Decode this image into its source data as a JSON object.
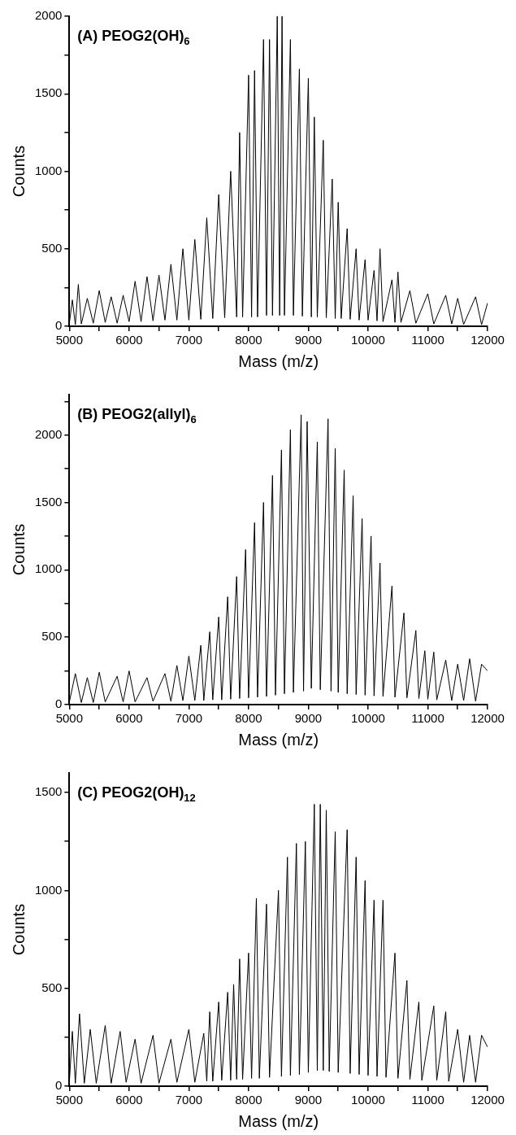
{
  "chart_data": [
    {
      "type": "line",
      "title": "(A) PEOG2(OH)$_{6}$",
      "xlabel": "Mass (m/z)",
      "ylabel": "Counts",
      "xlim": [
        5000,
        12000
      ],
      "ylim": [
        0,
        2000
      ],
      "xticks": [
        5000,
        {
          "value": 5500,
          "label": null
        },
        6000,
        {
          "value": 6500,
          "label": null
        },
        7000,
        {
          "value": 7500,
          "label": null
        },
        8000,
        {
          "value": 8500,
          "label": null
        },
        9000,
        {
          "value": 9500,
          "label": null
        },
        10000,
        {
          "value": 10500,
          "label": null
        },
        11000,
        {
          "value": 11500,
          "label": null
        },
        12000
      ],
      "yticks": [
        0,
        {
          "value": 250,
          "label": null
        },
        500,
        {
          "value": 750,
          "label": null
        },
        1000,
        {
          "value": 1250,
          "label": null
        },
        1500,
        {
          "value": 1750,
          "label": null
        },
        2000
      ],
      "series": [
        {
          "color": "#000000",
          "x": [
            5000,
            5050,
            5100,
            5150,
            5200,
            5300,
            5400,
            5500,
            5600,
            5700,
            5800,
            5900,
            6000,
            6100,
            6200,
            6300,
            6400,
            6500,
            6600,
            6700,
            6800,
            6900,
            7000,
            7100,
            7200,
            7300,
            7400,
            7500,
            7600,
            7700,
            7800,
            7850,
            7900,
            8000,
            8050,
            8100,
            8150,
            8250,
            8300,
            8350,
            8400,
            8480,
            8520,
            8560,
            8600,
            8700,
            8750,
            8850,
            8900,
            9000,
            9050,
            9100,
            9150,
            9250,
            9300,
            9400,
            9450,
            9500,
            9550,
            9650,
            9700,
            9800,
            9850,
            9950,
            10000,
            10100,
            10150,
            10200,
            10250,
            10400,
            10450,
            10500,
            10550,
            10700,
            10800,
            11000,
            11100,
            11300,
            11400,
            11500,
            11600,
            11800,
            11900,
            12000
          ],
          "values": [
            20,
            170,
            10,
            270,
            15,
            180,
            20,
            230,
            25,
            190,
            20,
            200,
            30,
            290,
            30,
            320,
            35,
            330,
            40,
            400,
            40,
            500,
            40,
            560,
            45,
            700,
            50,
            850,
            55,
            1000,
            60,
            1250,
            60,
            1620,
            60,
            1650,
            60,
            1850,
            70,
            1850,
            70,
            2000,
            70,
            2000,
            70,
            1850,
            70,
            1660,
            65,
            1600,
            60,
            1350,
            60,
            1200,
            55,
            950,
            50,
            800,
            50,
            630,
            45,
            500,
            40,
            430,
            40,
            360,
            35,
            500,
            30,
            300,
            25,
            350,
            25,
            230,
            20,
            210,
            15,
            200,
            15,
            180,
            12,
            190,
            10,
            150
          ]
        }
      ]
    },
    {
      "type": "line",
      "title": "(B) PEOG2(allyl)$_{6}$",
      "xlabel": "Mass (m/z)",
      "ylabel": "Counts",
      "xlim": [
        5000,
        12000
      ],
      "ylim": [
        0,
        2300
      ],
      "xticks": [
        5000,
        {
          "value": 5500,
          "label": null
        },
        6000,
        {
          "value": 6500,
          "label": null
        },
        7000,
        {
          "value": 7500,
          "label": null
        },
        8000,
        {
          "value": 8500,
          "label": null
        },
        9000,
        {
          "value": 9500,
          "label": null
        },
        10000,
        {
          "value": 10500,
          "label": null
        },
        11000,
        {
          "value": 11500,
          "label": null
        },
        12000
      ],
      "yticks": [
        0,
        {
          "value": 250,
          "label": null
        },
        500,
        {
          "value": 750,
          "label": null
        },
        1000,
        {
          "value": 1250,
          "label": null
        },
        1500,
        {
          "value": 1750,
          "label": null
        },
        2000,
        {
          "value": 2250,
          "label": null
        }
      ],
      "series": [
        {
          "color": "#000000",
          "x": [
            5000,
            5100,
            5200,
            5300,
            5400,
            5500,
            5600,
            5800,
            5900,
            6000,
            6100,
            6300,
            6400,
            6600,
            6700,
            6800,
            6900,
            7000,
            7100,
            7200,
            7250,
            7350,
            7400,
            7500,
            7550,
            7650,
            7700,
            7800,
            7850,
            7950,
            8000,
            8100,
            8150,
            8250,
            8300,
            8400,
            8450,
            8550,
            8600,
            8700,
            8750,
            8880,
            8920,
            8980,
            9050,
            9150,
            9200,
            9330,
            9380,
            9450,
            9500,
            9600,
            9650,
            9750,
            9800,
            9900,
            9950,
            10050,
            10100,
            10200,
            10250,
            10400,
            10450,
            10600,
            10650,
            10800,
            10850,
            10950,
            11000,
            11100,
            11150,
            11300,
            11400,
            11500,
            11600,
            11700,
            11800,
            11900,
            12000
          ],
          "values": [
            20,
            230,
            15,
            200,
            15,
            240,
            20,
            210,
            20,
            250,
            20,
            200,
            25,
            230,
            25,
            290,
            30,
            360,
            30,
            440,
            30,
            540,
            35,
            650,
            35,
            800,
            40,
            950,
            45,
            1150,
            50,
            1350,
            55,
            1500,
            60,
            1700,
            70,
            1890,
            80,
            2040,
            90,
            2150,
            100,
            2100,
            120,
            1950,
            110,
            2120,
            100,
            1900,
            90,
            1740,
            80,
            1550,
            75,
            1380,
            70,
            1250,
            65,
            1050,
            60,
            880,
            55,
            680,
            50,
            550,
            45,
            400,
            40,
            390,
            35,
            330,
            30,
            300,
            30,
            340,
            25,
            300,
            250
          ]
        }
      ]
    },
    {
      "type": "line",
      "title": "(C) PEOG2(OH)$_{12}$",
      "xlabel": "Mass (m/z)",
      "ylabel": "Counts",
      "xlim": [
        5000,
        12000
      ],
      "ylim": [
        0,
        1600
      ],
      "xticks": [
        5000,
        {
          "value": 5500,
          "label": null
        },
        6000,
        {
          "value": 6500,
          "label": null
        },
        7000,
        {
          "value": 7500,
          "label": null
        },
        8000,
        {
          "value": 8500,
          "label": null
        },
        9000,
        {
          "value": 9500,
          "label": null
        },
        10000,
        {
          "value": 10500,
          "label": null
        },
        11000,
        {
          "value": 11500,
          "label": null
        },
        12000
      ],
      "yticks": [
        0,
        {
          "value": 250,
          "label": null
        },
        500,
        {
          "value": 750,
          "label": null
        },
        1000,
        {
          "value": 1250,
          "label": null
        },
        1500
      ],
      "series": [
        {
          "color": "#000000",
          "x": [
            5000,
            5050,
            5100,
            5170,
            5250,
            5350,
            5450,
            5600,
            5700,
            5850,
            5950,
            6100,
            6200,
            6400,
            6500,
            6700,
            6800,
            7000,
            7100,
            7250,
            7300,
            7350,
            7400,
            7500,
            7550,
            7650,
            7700,
            7750,
            7800,
            7850,
            7900,
            8000,
            8050,
            8130,
            8180,
            8300,
            8350,
            8500,
            8550,
            8650,
            8700,
            8800,
            8850,
            8950,
            9000,
            9100,
            9150,
            9200,
            9250,
            9300,
            9350,
            9450,
            9500,
            9650,
            9700,
            9800,
            9850,
            9950,
            10000,
            10100,
            10150,
            10250,
            10300,
            10450,
            10500,
            10650,
            10700,
            10850,
            10900,
            11100,
            11150,
            11300,
            11350,
            11500,
            11600,
            11700,
            11800,
            11900,
            12000
          ],
          "values": [
            20,
            280,
            15,
            370,
            15,
            290,
            15,
            310,
            15,
            280,
            20,
            240,
            15,
            260,
            15,
            240,
            20,
            290,
            20,
            270,
            25,
            380,
            25,
            430,
            30,
            480,
            30,
            520,
            35,
            650,
            35,
            680,
            40,
            960,
            40,
            930,
            45,
            1000,
            50,
            1170,
            55,
            1240,
            60,
            1250,
            70,
            1440,
            80,
            1440,
            80,
            1410,
            75,
            1300,
            70,
            1310,
            65,
            1170,
            60,
            1050,
            55,
            950,
            50,
            950,
            45,
            680,
            40,
            540,
            35,
            430,
            30,
            410,
            30,
            380,
            25,
            290,
            20,
            260,
            20,
            260,
            200
          ]
        }
      ]
    }
  ]
}
